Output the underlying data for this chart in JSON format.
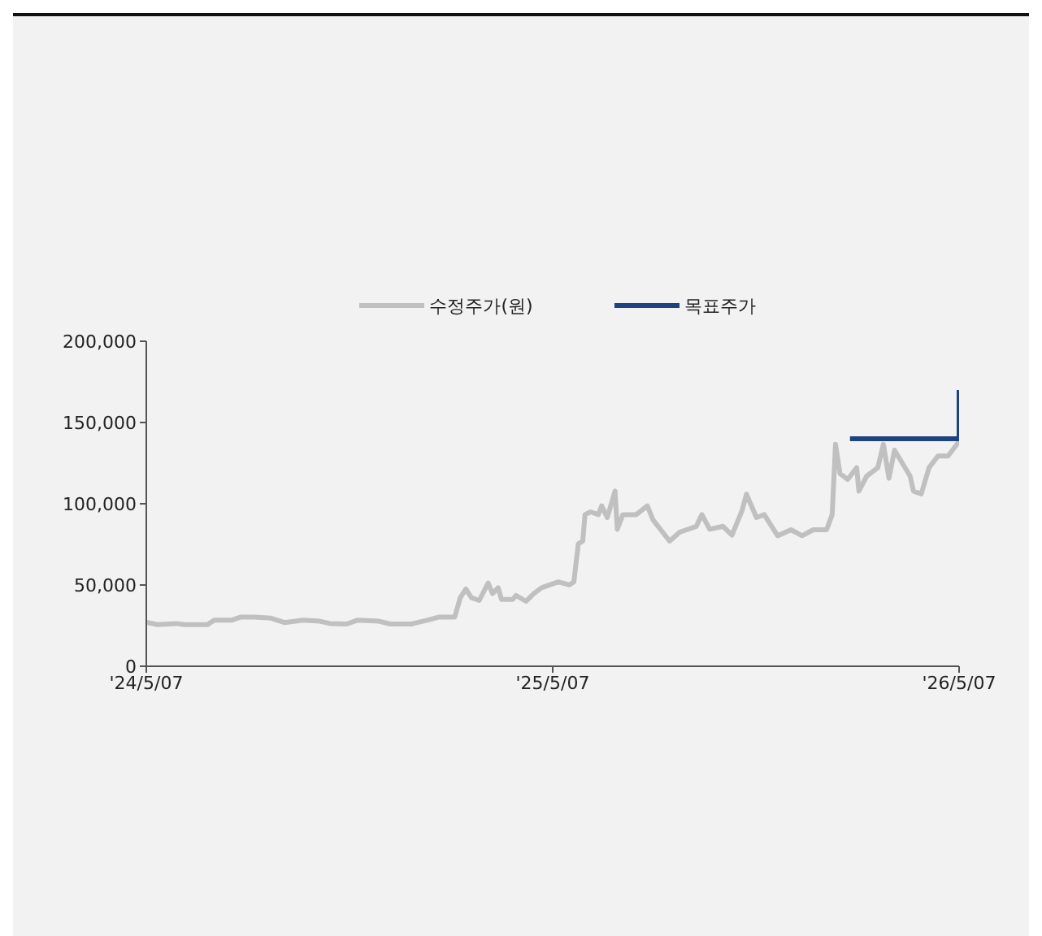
{
  "chart_data": {
    "type": "line",
    "legend": "top",
    "marker": "none",
    "xlim": [
      "2024-05-07",
      "2026-05-07"
    ],
    "xticks": [
      {
        "value": "2024-05-07",
        "label": "'24/5/07"
      },
      {
        "value": "2025-05-07",
        "label": "'25/5/07"
      },
      {
        "value": "2026-05-07",
        "label": "'26/5/07"
      }
    ],
    "ylim": [
      0,
      200000
    ],
    "yticks": [
      {
        "value": 0,
        "label": "0"
      },
      {
        "value": 50000,
        "label": "50,000"
      },
      {
        "value": 100000,
        "label": "100,000"
      },
      {
        "value": 150000,
        "label": "150,000"
      },
      {
        "value": 200000,
        "label": "200,000"
      }
    ],
    "series": [
      {
        "name": "수정주가(원)",
        "color": "#c0c0c0",
        "x": [
          "2024-05-07",
          "2024-05-17",
          "2024-06-03",
          "2024-06-10",
          "2024-07-01",
          "2024-07-07",
          "2024-07-23",
          "2024-07-31",
          "2024-08-12",
          "2024-08-27",
          "2024-09-08",
          "2024-09-25",
          "2024-10-10",
          "2024-10-19",
          "2024-11-03",
          "2024-11-13",
          "2024-12-02",
          "2024-12-12",
          "2024-12-31",
          "2025-01-15",
          "2025-01-25",
          "2025-02-08",
          "2025-02-13",
          "2025-02-18",
          "2025-02-23",
          "2025-03-02",
          "2025-03-10",
          "2025-03-14",
          "2025-03-19",
          "2025-03-22",
          "2025-04-01",
          "2025-04-04",
          "2025-04-13",
          "2025-04-20",
          "2025-04-27",
          "2025-05-12",
          "2025-05-22",
          "2025-05-26",
          "2025-05-30",
          "2025-06-03",
          "2025-06-05",
          "2025-06-10",
          "2025-06-17",
          "2025-06-20",
          "2025-06-25",
          "2025-07-02",
          "2025-07-04",
          "2025-07-09",
          "2025-07-21",
          "2025-07-31",
          "2025-08-05",
          "2025-08-20",
          "2025-08-29",
          "2025-09-13",
          "2025-09-18",
          "2025-09-25",
          "2025-10-07",
          "2025-10-15",
          "2025-10-24",
          "2025-10-28",
          "2025-11-06",
          "2025-11-13",
          "2025-11-25",
          "2025-12-07",
          "2025-12-17",
          "2025-12-27",
          "2026-01-08",
          "2026-01-13",
          "2026-01-16",
          "2026-01-20",
          "2026-01-27",
          "2026-02-04",
          "2026-02-06",
          "2026-02-13",
          "2026-02-23",
          "2026-02-28",
          "2026-03-05",
          "2026-03-10",
          "2026-03-24",
          "2026-03-27",
          "2026-04-03",
          "2026-04-10",
          "2026-04-18",
          "2026-04-27",
          "2026-05-07"
        ],
        "values": [
          27000,
          25600,
          26300,
          25600,
          25600,
          28400,
          28400,
          30300,
          30300,
          29600,
          26900,
          28400,
          27700,
          26300,
          26000,
          28400,
          27700,
          26000,
          26000,
          28400,
          30300,
          30300,
          42200,
          47600,
          42200,
          40500,
          51200,
          44700,
          48300,
          41100,
          41100,
          43600,
          40000,
          44700,
          48300,
          51900,
          50100,
          51900,
          75300,
          77000,
          93300,
          95000,
          93300,
          98700,
          91500,
          107800,
          84300,
          93300,
          93300,
          98700,
          90200,
          77000,
          82500,
          86100,
          93300,
          84300,
          86100,
          80700,
          95700,
          105900,
          91500,
          93300,
          80300,
          84000,
          80300,
          84000,
          84000,
          93300,
          136600,
          118600,
          115000,
          122200,
          107800,
          117000,
          122200,
          136600,
          115700,
          133000,
          117000,
          107800,
          106000,
          122200,
          129400,
          129400,
          138400
        ]
      },
      {
        "name": "목표주가",
        "color": "#1f4280",
        "x": [
          "2026-01-29",
          "2026-05-07",
          "2026-05-07"
        ],
        "values": [
          140000,
          140000,
          170000
        ]
      }
    ]
  }
}
